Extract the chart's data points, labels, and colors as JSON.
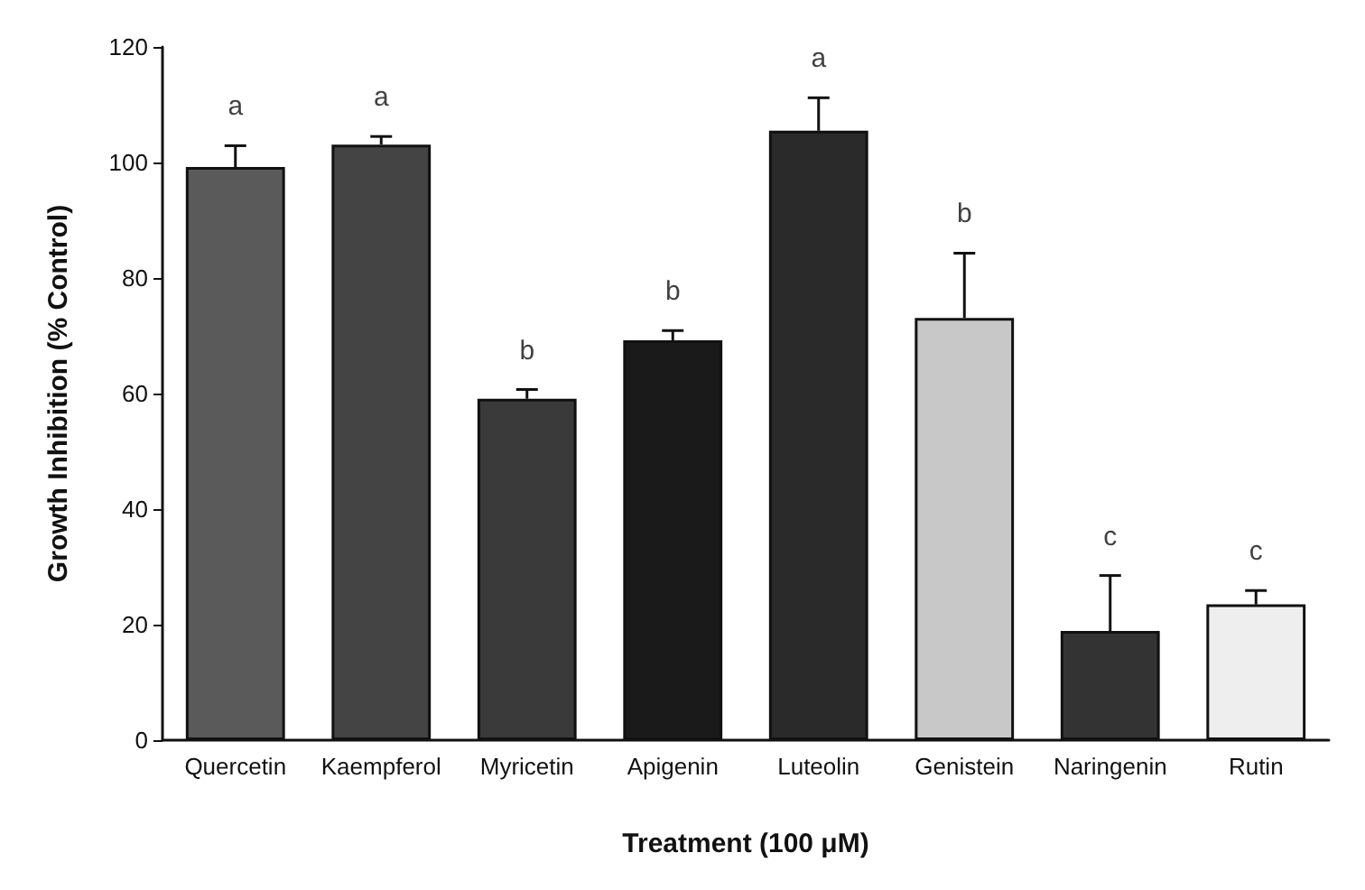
{
  "chart_data": {
    "type": "bar",
    "xlabel": "Treatment (100 μM)",
    "ylabel": "Growth Inhibition (% Control)",
    "categories": [
      "Quercetin",
      "Kaempferol",
      "Myricetin",
      "Apigenin",
      "Luteolin",
      "Genistein",
      "Naringenin",
      "Rutin"
    ],
    "values": [
      99.2,
      103.1,
      59.1,
      69.2,
      105.5,
      73.1,
      18.9,
      23.5
    ],
    "errors": [
      [
        99.2,
        102.9
      ],
      [
        103.1,
        104.5
      ],
      [
        59.1,
        60.7
      ],
      [
        69.2,
        70.9
      ],
      [
        105.5,
        111.2
      ],
      [
        73.1,
        84.3
      ],
      [
        18.9,
        28.5
      ],
      [
        23.5,
        25.9
      ]
    ],
    "colors": [
      "#5a5a5a",
      "#444444",
      "#3a3a3a",
      "#1a1a1a",
      "#2a2a2a",
      "#c8c8c8",
      "#333333",
      "#eeeeee"
    ],
    "ylim": [
      0,
      120
    ],
    "yticks": [
      0,
      20,
      40,
      60,
      80,
      100,
      120
    ],
    "grid": false,
    "annotations": [
      "a",
      "a",
      "b",
      "b",
      "a",
      "b",
      "c",
      "c"
    ]
  }
}
